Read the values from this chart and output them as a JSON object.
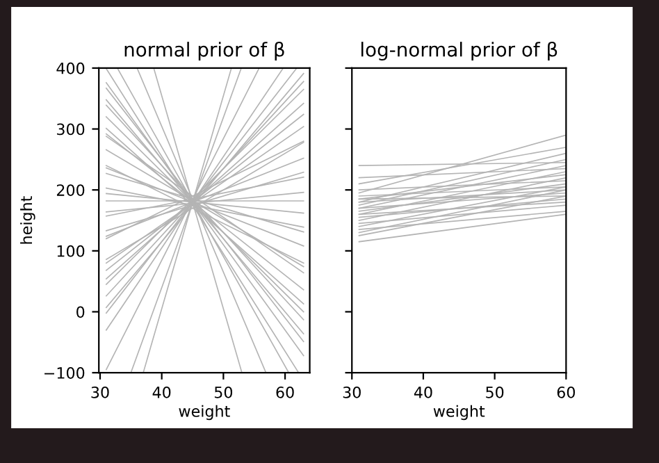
{
  "chart_data": [
    {
      "type": "line",
      "title": "normal prior of β",
      "xlabel": "weight",
      "ylabel": "height",
      "xlim": [
        29.8,
        64
      ],
      "ylim": [
        -100,
        400
      ],
      "xticks": [
        30,
        40,
        50,
        60
      ],
      "yticks": [
        -100,
        0,
        100,
        200,
        300,
        400
      ],
      "series": [
        {
          "color": "#b4b4b4",
          "x": [
            31,
            63
          ],
          "values": [
            376,
            -72
          ]
        },
        {
          "color": "#b4b4b4",
          "x": [
            31,
            63
          ],
          "values": [
            339,
            -13
          ]
        },
        {
          "color": "#b4b4b4",
          "x": [
            31,
            63
          ],
          "values": [
            301,
            13
          ]
        },
        {
          "color": "#b4b4b4",
          "x": [
            31,
            63
          ],
          "values": [
            288,
            64
          ]
        },
        {
          "color": "#b4b4b4",
          "x": [
            31,
            63
          ],
          "values": [
            240,
            80
          ]
        },
        {
          "color": "#b4b4b4",
          "x": [
            31,
            63
          ],
          "values": [
            236,
            108
          ]
        },
        {
          "color": "#b4b4b4",
          "x": [
            31,
            63
          ],
          "values": [
            227,
            131
          ]
        },
        {
          "color": "#b4b4b4",
          "x": [
            31,
            63
          ],
          "values": [
            203,
            139
          ]
        },
        {
          "color": "#b4b4b4",
          "x": [
            31,
            63
          ],
          "values": [
            194,
            162
          ]
        },
        {
          "color": "#b4b4b4",
          "x": [
            31,
            63
          ],
          "values": [
            182,
            182
          ]
        },
        {
          "color": "#b4b4b4",
          "x": [
            31,
            63
          ],
          "values": [
            164,
            196
          ]
        },
        {
          "color": "#b4b4b4",
          "x": [
            31,
            63
          ],
          "values": [
            157,
            221
          ]
        },
        {
          "color": "#b4b4b4",
          "x": [
            31,
            63
          ],
          "values": [
            133,
            229
          ]
        },
        {
          "color": "#b4b4b4",
          "x": [
            31,
            63
          ],
          "values": [
            124,
            252
          ]
        },
        {
          "color": "#b4b4b4",
          "x": [
            31,
            63
          ],
          "values": [
            120,
            280
          ]
        },
        {
          "color": "#b4b4b4",
          "x": [
            31,
            63
          ],
          "values": [
            86,
            278
          ]
        },
        {
          "color": "#b4b4b4",
          "x": [
            31,
            63
          ],
          "values": [
            68,
            324
          ]
        },
        {
          "color": "#b4b4b4",
          "x": [
            31,
            63
          ],
          "values": [
            45,
            365
          ]
        },
        {
          "color": "#b4b4b4",
          "x": [
            31,
            63
          ],
          "values": [
            7,
            391
          ]
        },
        {
          "color": "#b4b4b4",
          "x": [
            31,
            63
          ],
          "values": [
            348,
            -36
          ]
        },
        {
          "color": "#b4b4b4",
          "x": [
            31,
            63
          ],
          "values": [
            54,
            342
          ]
        },
        {
          "color": "#b4b4b4",
          "x": [
            31,
            63
          ],
          "values": [
            292,
            36
          ]
        },
        {
          "color": "#b4b4b4",
          "x": [
            31,
            59.7
          ],
          "values": [
            -30,
            400
          ]
        },
        {
          "color": "#b4b4b4",
          "x": [
            31,
            55.8
          ],
          "values": [
            -95,
            400
          ]
        },
        {
          "color": "#b4b4b4",
          "x": [
            35,
            52.9
          ],
          "values": [
            -100,
            400
          ]
        },
        {
          "color": "#b4b4b4",
          "x": [
            32.8,
            60.6
          ],
          "values": [
            400,
            -100
          ]
        },
        {
          "color": "#b4b4b4",
          "x": [
            36,
            56.9
          ],
          "values": [
            400,
            -100
          ]
        },
        {
          "color": "#b4b4b4",
          "x": [
            31,
            62.2
          ],
          "values": [
            399,
            -100
          ]
        },
        {
          "color": "#b4b4b4",
          "x": [
            37,
            51.3
          ],
          "values": [
            -100,
            400
          ]
        },
        {
          "color": "#b4b4b4",
          "x": [
            38.7,
            53
          ],
          "values": [
            400,
            -100
          ]
        },
        {
          "color": "#b4b4b4",
          "x": [
            31,
            61.9
          ],
          "values": [
            -2,
            400
          ]
        },
        {
          "color": "#b4b4b4",
          "x": [
            31,
            63
          ],
          "values": [
            367,
            -49
          ]
        },
        {
          "color": "#b4b4b4",
          "x": [
            31,
            63
          ],
          "values": [
            80,
            304
          ]
        },
        {
          "color": "#b4b4b4",
          "x": [
            31,
            63
          ],
          "values": [
            266,
            74
          ]
        },
        {
          "color": "#b4b4b4",
          "x": [
            31,
            63
          ],
          "values": [
            320,
            0
          ]
        },
        {
          "color": "#b4b4b4",
          "x": [
            31,
            63
          ],
          "values": [
            26,
            378
          ]
        }
      ]
    },
    {
      "type": "line",
      "title": "log-normal prior of β",
      "xlabel": "weight",
      "xlim": [
        30,
        60
      ],
      "ylim": [
        -100,
        400
      ],
      "xticks": [
        30,
        40,
        50,
        60
      ],
      "yticks": [
        -100,
        0,
        100,
        200,
        300,
        400
      ],
      "tick_labels": "x",
      "series": [
        {
          "color": "#b4b4b4",
          "x": [
            31,
            60
          ],
          "values": [
            240,
            245
          ]
        },
        {
          "color": "#b4b4b4",
          "x": [
            31,
            60
          ],
          "values": [
            220,
            235
          ]
        },
        {
          "color": "#b4b4b4",
          "x": [
            31,
            60
          ],
          "values": [
            210,
            270
          ]
        },
        {
          "color": "#b4b4b4",
          "x": [
            31,
            60
          ],
          "values": [
            200,
            215
          ]
        },
        {
          "color": "#b4b4b4",
          "x": [
            31,
            60
          ],
          "values": [
            195,
            290
          ]
        },
        {
          "color": "#b4b4b4",
          "x": [
            31,
            60
          ],
          "values": [
            190,
            205
          ]
        },
        {
          "color": "#b4b4b4",
          "x": [
            31,
            60
          ],
          "values": [
            185,
            225
          ]
        },
        {
          "color": "#b4b4b4",
          "x": [
            31,
            60
          ],
          "values": [
            180,
            200
          ]
        },
        {
          "color": "#b4b4b4",
          "x": [
            31,
            60
          ],
          "values": [
            175,
            250
          ]
        },
        {
          "color": "#b4b4b4",
          "x": [
            31,
            60
          ],
          "values": [
            170,
            195
          ]
        },
        {
          "color": "#b4b4b4",
          "x": [
            31,
            60
          ],
          "values": [
            165,
            210
          ]
        },
        {
          "color": "#b4b4b4",
          "x": [
            31,
            60
          ],
          "values": [
            160,
            230
          ]
        },
        {
          "color": "#b4b4b4",
          "x": [
            31,
            60
          ],
          "values": [
            155,
            185
          ]
        },
        {
          "color": "#b4b4b4",
          "x": [
            31,
            60
          ],
          "values": [
            150,
            220
          ]
        },
        {
          "color": "#b4b4b4",
          "x": [
            31,
            60
          ],
          "values": [
            145,
            175
          ]
        },
        {
          "color": "#b4b4b4",
          "x": [
            31,
            60
          ],
          "values": [
            140,
            205
          ]
        },
        {
          "color": "#b4b4b4",
          "x": [
            31,
            60
          ],
          "values": [
            135,
            165
          ]
        },
        {
          "color": "#b4b4b4",
          "x": [
            31,
            60
          ],
          "values": [
            130,
            200
          ]
        },
        {
          "color": "#b4b4b4",
          "x": [
            31,
            60
          ],
          "values": [
            125,
            190
          ]
        },
        {
          "color": "#b4b4b4",
          "x": [
            31,
            60
          ],
          "values": [
            115,
            160
          ]
        },
        {
          "color": "#b4b4b4",
          "x": [
            31,
            60
          ],
          "values": [
            185,
            190
          ]
        },
        {
          "color": "#b4b4b4",
          "x": [
            31,
            60
          ],
          "values": [
            170,
            240
          ]
        },
        {
          "color": "#b4b4b4",
          "x": [
            31,
            60
          ],
          "values": [
            160,
            180
          ]
        },
        {
          "color": "#b4b4b4",
          "x": [
            31,
            60
          ],
          "values": [
            180,
            260
          ]
        }
      ]
    }
  ]
}
